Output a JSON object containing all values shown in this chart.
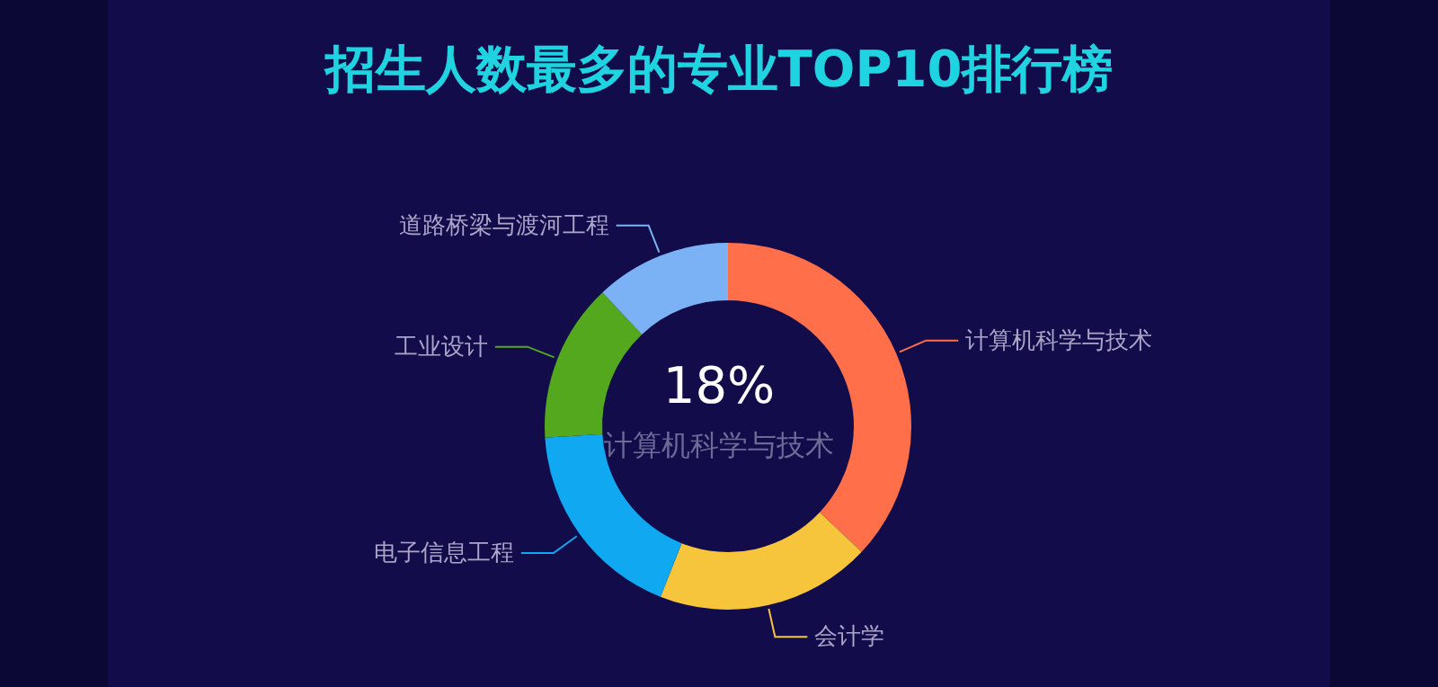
{
  "chart_data": {
    "type": "donut",
    "title": "招生人数最多的专业TOP10排行榜",
    "categories": [
      "计算机科学与技术",
      "会计学",
      "电子信息工程",
      "工业设计",
      "道路桥梁与渡河工程"
    ],
    "values": [
      37,
      19,
      18,
      14,
      12
    ],
    "colors": [
      "#ff6f4a",
      "#f7c53c",
      "#10a8f0",
      "#54a81e",
      "#7ab2f5"
    ],
    "annotations": [
      "18%",
      "计算机科学与技术"
    ],
    "legend": false
  }
}
